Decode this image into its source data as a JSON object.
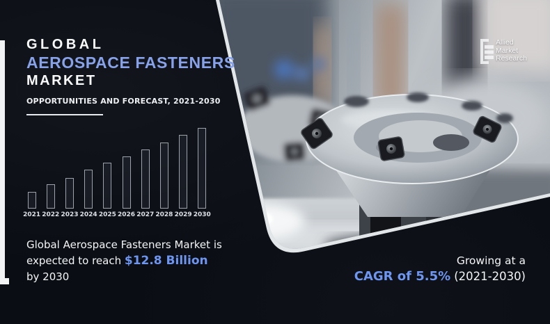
{
  "header": {
    "title_line1": "GLOBAL",
    "title_line2": "AEROSPACE FASTENERS",
    "title_line3": "MARKET",
    "subtitle": "OPPORTUNITIES AND FORECAST, 2021-2030"
  },
  "chart_data": {
    "type": "bar",
    "categories": [
      "2021",
      "2022",
      "2023",
      "2024",
      "2025",
      "2026",
      "2027",
      "2028",
      "2029",
      "2030"
    ],
    "values": [
      24,
      35,
      44,
      56,
      66,
      75,
      85,
      95,
      106,
      116
    ],
    "unit": "relative height (illustrative, no axis shown)",
    "title": "",
    "xlabel": "",
    "ylabel": "",
    "legend": false,
    "grid": false,
    "bar_style": "thin light outline, dark fill"
  },
  "highlight": {
    "line1": "Global Aerospace Fasteners Market is",
    "line2_prefix": "expected to reach ",
    "line2_value": "$12.8 Billion",
    "line3": "by 2030"
  },
  "growth": {
    "line1": "Growing at a",
    "value": "CAGR of 5.5%",
    "suffix": "(2021-2030)"
  },
  "logo": {
    "lines": [
      "Allied",
      "Market",
      "Research"
    ]
  },
  "colors": {
    "background": "#0a0d14",
    "accent_blue": "#87a2e8",
    "value_blue": "#6e96f0",
    "text_white": "#f2f3f5",
    "bar_outline": "rgba(202,208,218,0.75)"
  }
}
